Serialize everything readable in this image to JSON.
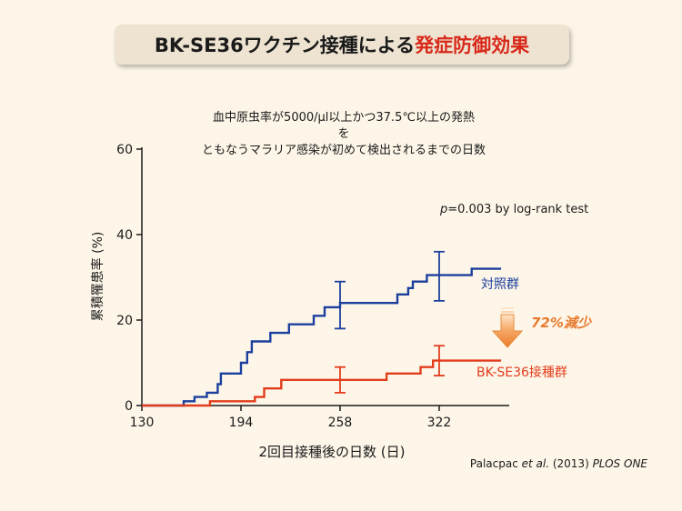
{
  "header": {
    "title_main": "BK-SE36ワクチン接種による",
    "title_highlight": "発症防御効果"
  },
  "subtitle_lines": [
    "血中原虫率が5000/μl以上かつ37.5℃以上の発熱",
    "を",
    "ともなうマラリア感染が初めて検出されるまでの日数"
  ],
  "stat": {
    "p": "p",
    "rest": "=0.003 by log-rank test"
  },
  "arrow_label": "72%減少",
  "citation": {
    "authors": "Palacpac ",
    "etal": "et al.",
    "year": " (2013) ",
    "journal": "PLOS ONE"
  },
  "colors": {
    "control": "#1c3f9e",
    "vaccine": "#e23c1c",
    "arrow": "#f08a3c",
    "title_red": "#d8281a",
    "background": "#fdf6e8"
  },
  "chart_data": {
    "type": "line",
    "subtype": "step",
    "xlabel": "2回目接種後の日数 (日)",
    "ylabel": "累積罹患率 (%)",
    "xlim": [
      130,
      370
    ],
    "ylim": [
      0,
      60
    ],
    "xticks": [
      130,
      194,
      258,
      322
    ],
    "yticks": [
      0,
      20,
      40,
      60
    ],
    "grid": false,
    "legend": "inline labels at right end of each line",
    "series": [
      {
        "name": "対照群",
        "points": [
          [
            130,
            0
          ],
          [
            157,
            0
          ],
          [
            157,
            1
          ],
          [
            164,
            1
          ],
          [
            164,
            2
          ],
          [
            172,
            2
          ],
          [
            172,
            3
          ],
          [
            179,
            3
          ],
          [
            179,
            5
          ],
          [
            181,
            5
          ],
          [
            181,
            7.5
          ],
          [
            194,
            7.5
          ],
          [
            194,
            10
          ],
          [
            198,
            10
          ],
          [
            198,
            12.5
          ],
          [
            201,
            12.5
          ],
          [
            201,
            15
          ],
          [
            213,
            15
          ],
          [
            213,
            17
          ],
          [
            225,
            17
          ],
          [
            225,
            19
          ],
          [
            241,
            19
          ],
          [
            241,
            21
          ],
          [
            248,
            21
          ],
          [
            248,
            23
          ],
          [
            258,
            23
          ],
          [
            258,
            24
          ],
          [
            295,
            24
          ],
          [
            295,
            26
          ],
          [
            302,
            26
          ],
          [
            302,
            27.5
          ],
          [
            305,
            27.5
          ],
          [
            305,
            29
          ],
          [
            314,
            29
          ],
          [
            314,
            30.5
          ],
          [
            343,
            30.5
          ],
          [
            343,
            32
          ],
          [
            362,
            32
          ]
        ],
        "error_bars": [
          {
            "x": 258,
            "y": 24,
            "low": 18,
            "high": 29
          },
          {
            "x": 322,
            "y": 30.5,
            "low": 24.5,
            "high": 36
          }
        ]
      },
      {
        "name": "BK-SE36接種群",
        "points": [
          [
            130,
            0
          ],
          [
            174,
            0
          ],
          [
            174,
            1
          ],
          [
            203,
            1
          ],
          [
            203,
            2
          ],
          [
            209,
            2
          ],
          [
            209,
            4
          ],
          [
            220,
            4
          ],
          [
            220,
            6
          ],
          [
            288,
            6
          ],
          [
            288,
            7.5
          ],
          [
            310,
            7.5
          ],
          [
            310,
            9
          ],
          [
            318,
            9
          ],
          [
            318,
            10.5
          ],
          [
            362,
            10.5
          ]
        ],
        "error_bars": [
          {
            "x": 258,
            "y": 6,
            "low": 3,
            "high": 9
          },
          {
            "x": 322,
            "y": 10.5,
            "low": 7,
            "high": 14
          }
        ]
      }
    ]
  }
}
